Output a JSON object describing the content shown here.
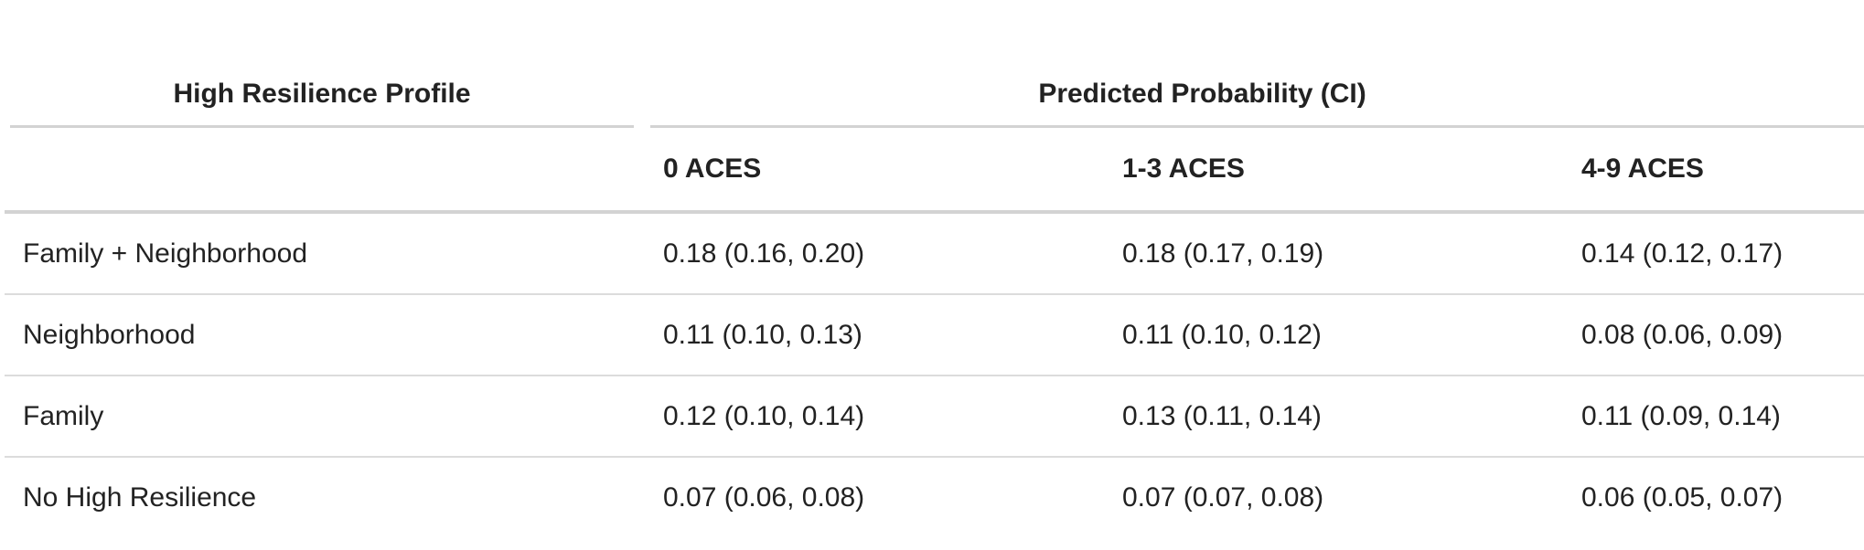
{
  "table": {
    "spanners": {
      "profile": "High Resilience Profile",
      "probability": "Predicted Probability (CI)"
    },
    "columns": [
      "",
      "0 ACES",
      "1-3 ACES",
      "4-9 ACES"
    ],
    "rows": [
      {
        "profile": "Family + Neighborhood",
        "aces_0": "0.18 (0.16, 0.20)",
        "aces_1_3": "0.18 (0.17, 0.19)",
        "aces_4_9": "0.14 (0.12, 0.17)"
      },
      {
        "profile": "Neighborhood",
        "aces_0": "0.11 (0.10, 0.13)",
        "aces_1_3": "0.11 (0.10, 0.12)",
        "aces_4_9": "0.08 (0.06, 0.09)"
      },
      {
        "profile": "Family",
        "aces_0": "0.12 (0.10, 0.14)",
        "aces_1_3": "0.13 (0.11, 0.14)",
        "aces_4_9": "0.11 (0.09, 0.14)"
      },
      {
        "profile": "No High Resilience",
        "aces_0": "0.07 (0.06, 0.08)",
        "aces_1_3": "0.07 (0.07, 0.08)",
        "aces_4_9": "0.06 (0.05, 0.07)"
      }
    ]
  }
}
